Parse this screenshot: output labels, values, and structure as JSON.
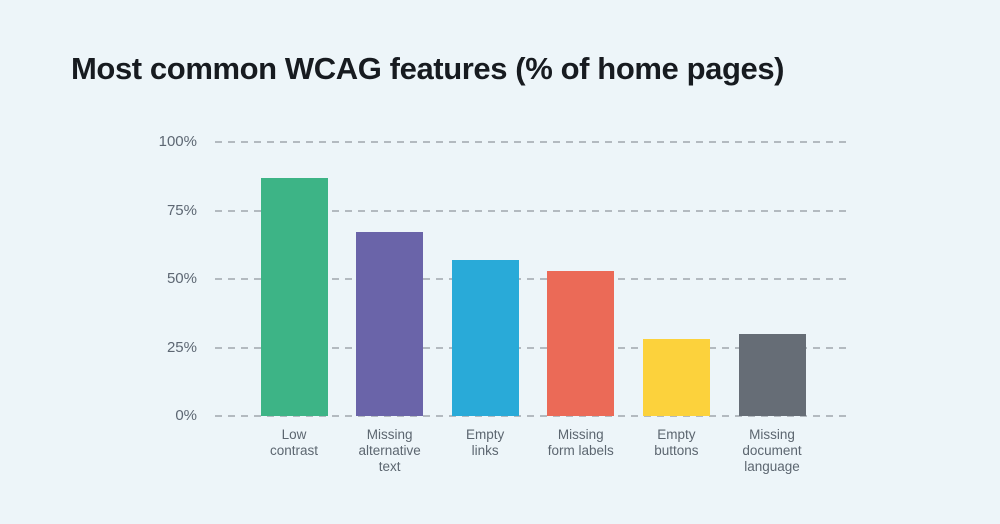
{
  "title": "Most common WCAG features (% of home pages)",
  "page": {
    "background_color": "#edf5f9",
    "title_color": "#171b20",
    "gridline_color": "#b3bac0",
    "axis_text_color": "#5d6773"
  },
  "chart_data": {
    "type": "bar",
    "title": "Most common WCAG features (% of home pages)",
    "xlabel": "",
    "ylabel": "",
    "ylim": [
      0,
      100
    ],
    "grid": "horizontal dashed",
    "legend": "none",
    "yticks": [
      {
        "value": 100,
        "label": "100%"
      },
      {
        "value": 75,
        "label": "75%"
      },
      {
        "value": 50,
        "label": "50%"
      },
      {
        "value": 25,
        "label": "25%"
      },
      {
        "value": 0,
        "label": "0%"
      }
    ],
    "categories": [
      "Low contrast",
      "Missing alternative text",
      "Empty links",
      "Missing form labels",
      "Empty buttons",
      "Missing document language"
    ],
    "category_label_lines": [
      [
        "Low",
        "contrast"
      ],
      [
        "Missing",
        "alternative",
        "text"
      ],
      [
        "Empty",
        "links"
      ],
      [
        "Missing",
        "form labels"
      ],
      [
        "Empty",
        "buttons"
      ],
      [
        "Missing",
        "document",
        "language"
      ]
    ],
    "values": [
      87,
      67,
      57,
      53,
      28,
      30
    ],
    "bar_colors": [
      "#3db486",
      "#6a64a9",
      "#29aad8",
      "#eb6a57",
      "#fcd23c",
      "#666d76"
    ]
  }
}
